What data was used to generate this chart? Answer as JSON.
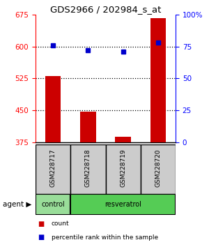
{
  "title": "GDS2966 / 202984_s_at",
  "samples": [
    "GSM228717",
    "GSM228718",
    "GSM228719",
    "GSM228720"
  ],
  "count_values": [
    530,
    447,
    387,
    667
  ],
  "percentile_values": [
    76,
    72,
    71,
    78
  ],
  "count_baseline": 375,
  "ylim_left": [
    375,
    675
  ],
  "ylim_right": [
    0,
    100
  ],
  "yticks_left": [
    375,
    450,
    525,
    600,
    675
  ],
  "yticks_right": [
    0,
    25,
    50,
    75,
    100
  ],
  "ytick_right_labels": [
    "0",
    "25",
    "50",
    "75",
    "100%"
  ],
  "bar_color": "#cc0000",
  "dot_color": "#0000cc",
  "agent_colors": [
    "#99dd99",
    "#55cc55"
  ],
  "sample_bg_color": "#cccccc",
  "bar_width": 0.45,
  "dot_size": 5,
  "legend_items": [
    {
      "label": "count",
      "color": "#cc0000"
    },
    {
      "label": "percentile rank within the sample",
      "color": "#0000cc"
    }
  ],
  "gridline_yticks": [
    450,
    525,
    600
  ],
  "gridline_style": "dotted",
  "gridline_lw": 0.9
}
